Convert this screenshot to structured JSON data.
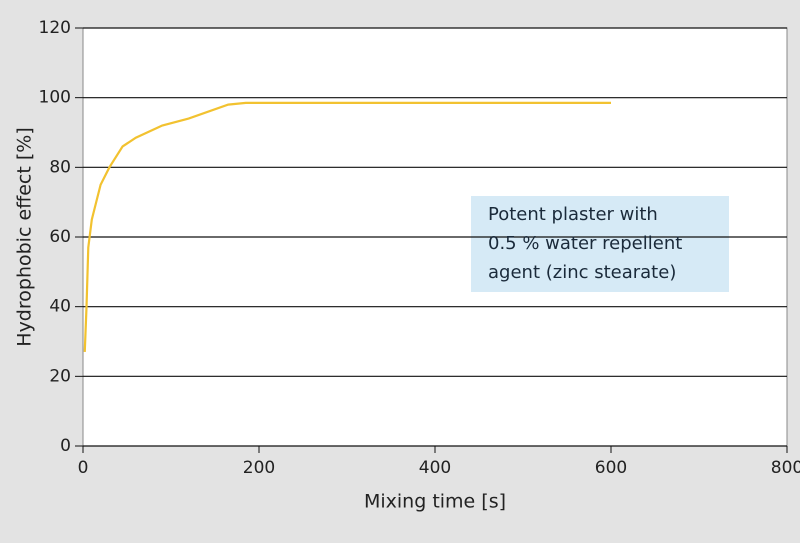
{
  "chart_data": {
    "type": "line",
    "x_label": "Mixing time [s]",
    "y_label": "Hydrophobic effect [%]",
    "x": [
      2,
      4,
      6,
      10,
      15,
      20,
      30,
      45,
      60,
      90,
      120,
      165,
      185,
      600
    ],
    "series": [
      {
        "name": "Potent plaster",
        "color": "#f2c230",
        "values": [
          27,
          40,
          57,
          65,
          70,
          75,
          80,
          86,
          88.5,
          92,
          94,
          98,
          98.5,
          98.5
        ]
      }
    ],
    "xlim": [
      0,
      800
    ],
    "xticks": [
      0,
      200,
      400,
      600,
      800
    ],
    "ylim": [
      0,
      120
    ],
    "yticks": [
      0,
      20,
      40,
      60,
      80,
      100,
      120
    ],
    "grid": true,
    "annotation": [
      "Potent plaster with",
      "0.5 % water repellent",
      "agent (zinc stearate)"
    ]
  }
}
